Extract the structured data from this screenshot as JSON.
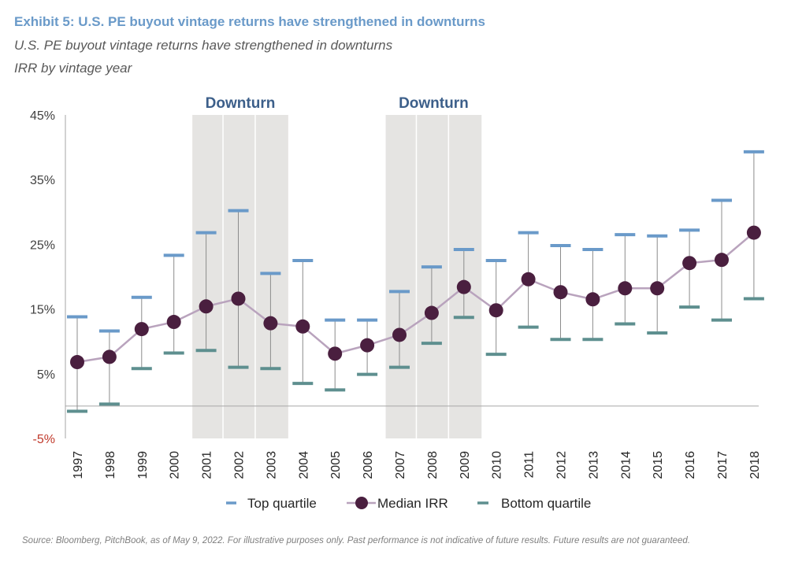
{
  "exhibit_title": "Exhibit 5: U.S. PE buyout vintage returns have strengthened in downturns",
  "subtitle": "U.S. PE buyout vintage returns have strengthened in downturns",
  "subtitle2": "IRR by  vintage year",
  "source": "Source: Bloomberg, PitchBook, as of May 9, 2022. For illustrative purposes only. Past performance is not indicative of future results. Future results are not guaranteed.",
  "colors": {
    "top_quartile": "#6a9ac9",
    "median": "#4a1f3f",
    "median_line": "#b9a3bd",
    "bottom_quartile": "#5e8f8f",
    "whisker": "#8c8c8c",
    "downturn_band": "#e5e4e2",
    "downturn_text": "#3c5f8a",
    "negative_tick": "#c0392b"
  },
  "chart_data": {
    "type": "line",
    "title": "IRR by  vintage year",
    "xlabel": "",
    "ylabel": "",
    "ylim": [
      -5,
      45
    ],
    "yticks": [
      45,
      35,
      25,
      15,
      5,
      -5
    ],
    "ytick_labels": [
      "45%",
      "35%",
      "25%",
      "15%",
      "5%",
      "-5%"
    ],
    "categories": [
      "1997",
      "1998",
      "1999",
      "2000",
      "2001",
      "2002",
      "2003",
      "2004",
      "2005",
      "2006",
      "2007",
      "2008",
      "2009",
      "2010",
      "2011",
      "2012",
      "2013",
      "2014",
      "2015",
      "2016",
      "2017",
      "2018"
    ],
    "series": [
      {
        "name": "Top quartile",
        "values": [
          13.8,
          11.6,
          16.8,
          23.3,
          26.8,
          30.2,
          20.5,
          22.5,
          13.3,
          13.3,
          17.7,
          21.5,
          24.2,
          22.5,
          26.8,
          24.8,
          24.2,
          26.5,
          26.3,
          27.2,
          31.8,
          39.3
        ]
      },
      {
        "name": "Median IRR",
        "values": [
          6.8,
          7.6,
          11.9,
          13.0,
          15.4,
          16.6,
          12.8,
          12.3,
          8.1,
          9.4,
          11.0,
          14.4,
          18.4,
          14.8,
          19.6,
          17.6,
          16.5,
          18.2,
          18.2,
          22.1,
          22.6,
          26.8
        ]
      },
      {
        "name": "Bottom quartile",
        "values": [
          -0.8,
          0.3,
          5.8,
          8.2,
          8.6,
          6.0,
          5.8,
          3.5,
          2.5,
          4.9,
          6.0,
          9.7,
          13.7,
          8.0,
          12.2,
          10.3,
          10.3,
          12.7,
          11.3,
          15.3,
          13.3,
          16.6
        ]
      }
    ],
    "annotations": [
      {
        "label": "Downturn",
        "from": "2001",
        "to": "2003"
      },
      {
        "label": "Downturn",
        "from": "2007",
        "to": "2009"
      }
    ],
    "legend": [
      "Top quartile",
      "Median IRR",
      "Bottom quartile"
    ],
    "legend_position": "bottom",
    "grid": false
  }
}
